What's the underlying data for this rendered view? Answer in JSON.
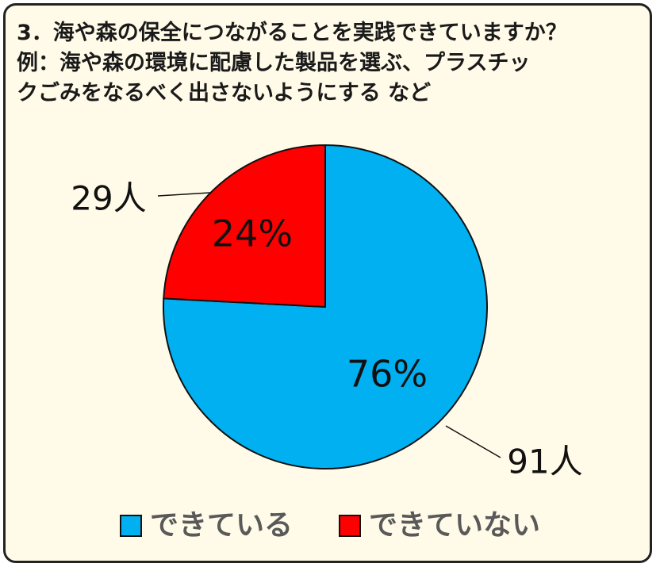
{
  "title_lines": [
    "3．海や森の保全につながることを実践できていますか？",
    "例：海や森の環境に配慮した製品を選ぶ、プラスチッ",
    "クごみをなるべく出さないようにする など"
  ],
  "chart_data": {
    "type": "pie",
    "start_angle_deg": 0,
    "direction": "clockwise",
    "slices": [
      {
        "label": "できている",
        "value": 91,
        "count_label": "91人",
        "percent_label": "76%",
        "color": "#00b0f0"
      },
      {
        "label": "できていない",
        "value": 29,
        "count_label": "29人",
        "percent_label": "24%",
        "color": "#ff0000"
      }
    ],
    "legend_position": "bottom"
  },
  "colors": {
    "frame_background": "#fffbe8",
    "frame_border": "#222222",
    "slice_outline": "#111111",
    "legend_text": "#595959"
  }
}
